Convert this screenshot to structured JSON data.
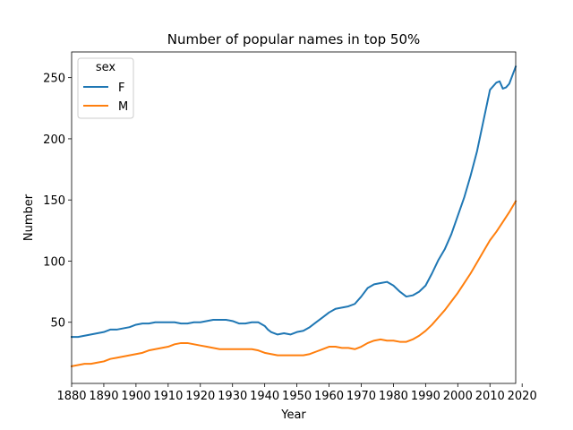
{
  "chart_data": {
    "type": "line",
    "title": "Number of popular names in top 50%",
    "xlabel": "Year",
    "ylabel": "Number",
    "xlim": [
      1880,
      2018
    ],
    "ylim": [
      0,
      271
    ],
    "x_ticks": [
      1880,
      1890,
      1900,
      1910,
      1920,
      1930,
      1940,
      1950,
      1960,
      1970,
      1980,
      1990,
      2000,
      2010,
      2020
    ],
    "y_ticks": [
      50,
      100,
      150,
      200,
      250
    ],
    "grid": false,
    "legend": {
      "title": "sex",
      "position": "top-left"
    },
    "series": [
      {
        "name": "F",
        "color": "#1f77b4",
        "points": [
          [
            1880,
            38
          ],
          [
            1882,
            38
          ],
          [
            1884,
            39
          ],
          [
            1886,
            40
          ],
          [
            1888,
            41
          ],
          [
            1890,
            42
          ],
          [
            1892,
            44
          ],
          [
            1894,
            44
          ],
          [
            1896,
            45
          ],
          [
            1898,
            46
          ],
          [
            1900,
            48
          ],
          [
            1902,
            49
          ],
          [
            1904,
            49
          ],
          [
            1906,
            50
          ],
          [
            1908,
            50
          ],
          [
            1910,
            50
          ],
          [
            1912,
            50
          ],
          [
            1914,
            49
          ],
          [
            1916,
            49
          ],
          [
            1918,
            50
          ],
          [
            1920,
            50
          ],
          [
            1922,
            51
          ],
          [
            1924,
            52
          ],
          [
            1926,
            52
          ],
          [
            1928,
            52
          ],
          [
            1930,
            51
          ],
          [
            1932,
            49
          ],
          [
            1934,
            49
          ],
          [
            1936,
            50
          ],
          [
            1938,
            50
          ],
          [
            1940,
            47
          ],
          [
            1941,
            44
          ],
          [
            1942,
            42
          ],
          [
            1944,
            40
          ],
          [
            1946,
            41
          ],
          [
            1948,
            40
          ],
          [
            1950,
            42
          ],
          [
            1952,
            43
          ],
          [
            1954,
            46
          ],
          [
            1956,
            50
          ],
          [
            1958,
            54
          ],
          [
            1960,
            58
          ],
          [
            1962,
            61
          ],
          [
            1964,
            62
          ],
          [
            1966,
            63
          ],
          [
            1968,
            65
          ],
          [
            1970,
            71
          ],
          [
            1972,
            78
          ],
          [
            1974,
            81
          ],
          [
            1976,
            82
          ],
          [
            1978,
            83
          ],
          [
            1980,
            80
          ],
          [
            1982,
            75
          ],
          [
            1984,
            71
          ],
          [
            1986,
            72
          ],
          [
            1988,
            75
          ],
          [
            1990,
            80
          ],
          [
            1992,
            90
          ],
          [
            1994,
            101
          ],
          [
            1996,
            110
          ],
          [
            1998,
            122
          ],
          [
            2000,
            137
          ],
          [
            2002,
            152
          ],
          [
            2004,
            170
          ],
          [
            2006,
            190
          ],
          [
            2008,
            215
          ],
          [
            2010,
            240
          ],
          [
            2012,
            246
          ],
          [
            2013,
            247
          ],
          [
            2014,
            241
          ],
          [
            2015,
            242
          ],
          [
            2016,
            245
          ],
          [
            2017,
            252
          ],
          [
            2018,
            259
          ]
        ]
      },
      {
        "name": "M",
        "color": "#ff7f0e",
        "points": [
          [
            1880,
            14
          ],
          [
            1882,
            15
          ],
          [
            1884,
            16
          ],
          [
            1886,
            16
          ],
          [
            1888,
            17
          ],
          [
            1890,
            18
          ],
          [
            1892,
            20
          ],
          [
            1894,
            21
          ],
          [
            1896,
            22
          ],
          [
            1898,
            23
          ],
          [
            1900,
            24
          ],
          [
            1902,
            25
          ],
          [
            1904,
            27
          ],
          [
            1906,
            28
          ],
          [
            1908,
            29
          ],
          [
            1910,
            30
          ],
          [
            1912,
            32
          ],
          [
            1914,
            33
          ],
          [
            1916,
            33
          ],
          [
            1918,
            32
          ],
          [
            1920,
            31
          ],
          [
            1922,
            30
          ],
          [
            1924,
            29
          ],
          [
            1926,
            28
          ],
          [
            1928,
            28
          ],
          [
            1930,
            28
          ],
          [
            1932,
            28
          ],
          [
            1934,
            28
          ],
          [
            1936,
            28
          ],
          [
            1938,
            27
          ],
          [
            1940,
            25
          ],
          [
            1942,
            24
          ],
          [
            1944,
            23
          ],
          [
            1946,
            23
          ],
          [
            1948,
            23
          ],
          [
            1950,
            23
          ],
          [
            1952,
            23
          ],
          [
            1954,
            24
          ],
          [
            1956,
            26
          ],
          [
            1958,
            28
          ],
          [
            1960,
            30
          ],
          [
            1962,
            30
          ],
          [
            1964,
            29
          ],
          [
            1966,
            29
          ],
          [
            1968,
            28
          ],
          [
            1970,
            30
          ],
          [
            1972,
            33
          ],
          [
            1974,
            35
          ],
          [
            1976,
            36
          ],
          [
            1978,
            35
          ],
          [
            1980,
            35
          ],
          [
            1982,
            34
          ],
          [
            1984,
            34
          ],
          [
            1986,
            36
          ],
          [
            1988,
            39
          ],
          [
            1990,
            43
          ],
          [
            1992,
            48
          ],
          [
            1994,
            54
          ],
          [
            1996,
            60
          ],
          [
            1998,
            67
          ],
          [
            2000,
            74
          ],
          [
            2002,
            82
          ],
          [
            2004,
            90
          ],
          [
            2006,
            99
          ],
          [
            2008,
            108
          ],
          [
            2010,
            117
          ],
          [
            2012,
            124
          ],
          [
            2014,
            132
          ],
          [
            2016,
            140
          ],
          [
            2018,
            149
          ]
        ]
      }
    ]
  }
}
